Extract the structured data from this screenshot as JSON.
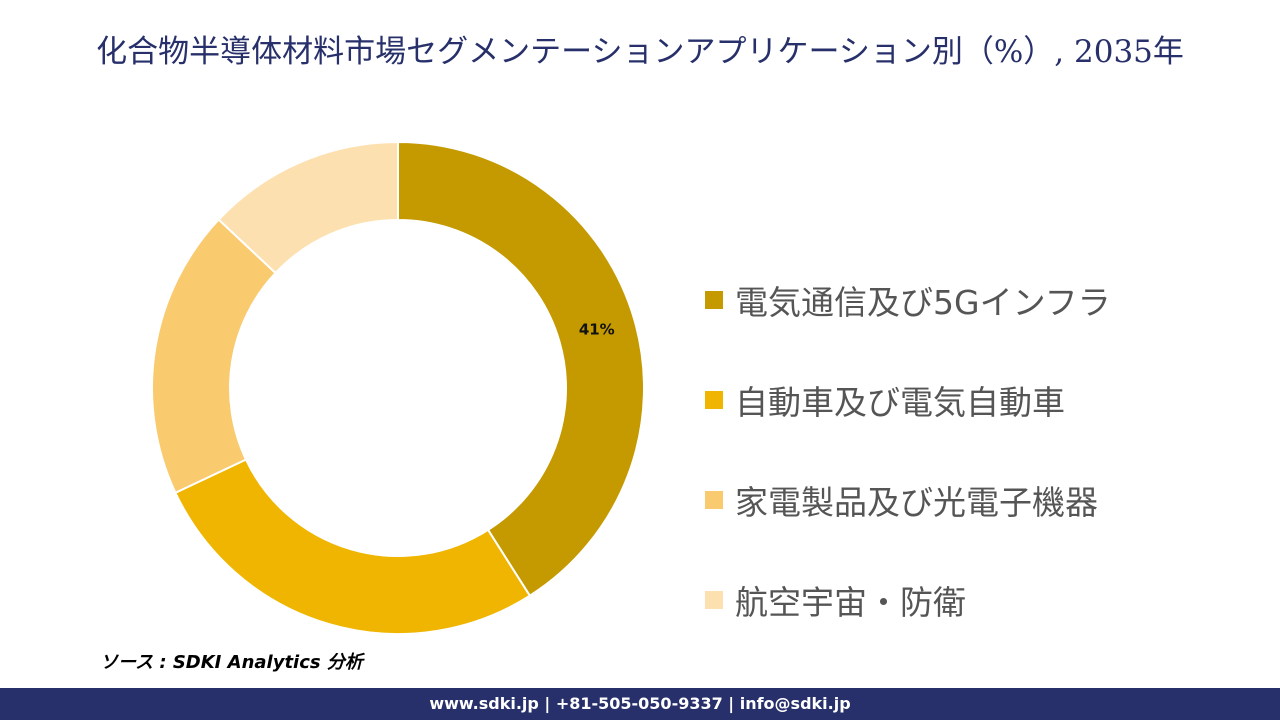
{
  "chart_data": {
    "type": "donut",
    "title": "化合物半導体材料市場セグメンテーションアプリケーション別（%）, 2035年",
    "categories": [
      "電気通信及び5Gインフラ",
      "自動車及び電気自動車",
      "家電製品及び光電子機器",
      "航空宇宙・防衛"
    ],
    "values": [
      41,
      27,
      19,
      13
    ],
    "value_labels": [
      "41%",
      null,
      null,
      null
    ],
    "colors": [
      "#C49A00",
      "#EFB500",
      "#F9CA6E",
      "#FDE0B0"
    ],
    "legend": "right"
  },
  "source": "ソース : SDKI Analytics 分析",
  "footer": "www.sdki.jp | +81-505-050-9337 | info@sdki.jp"
}
